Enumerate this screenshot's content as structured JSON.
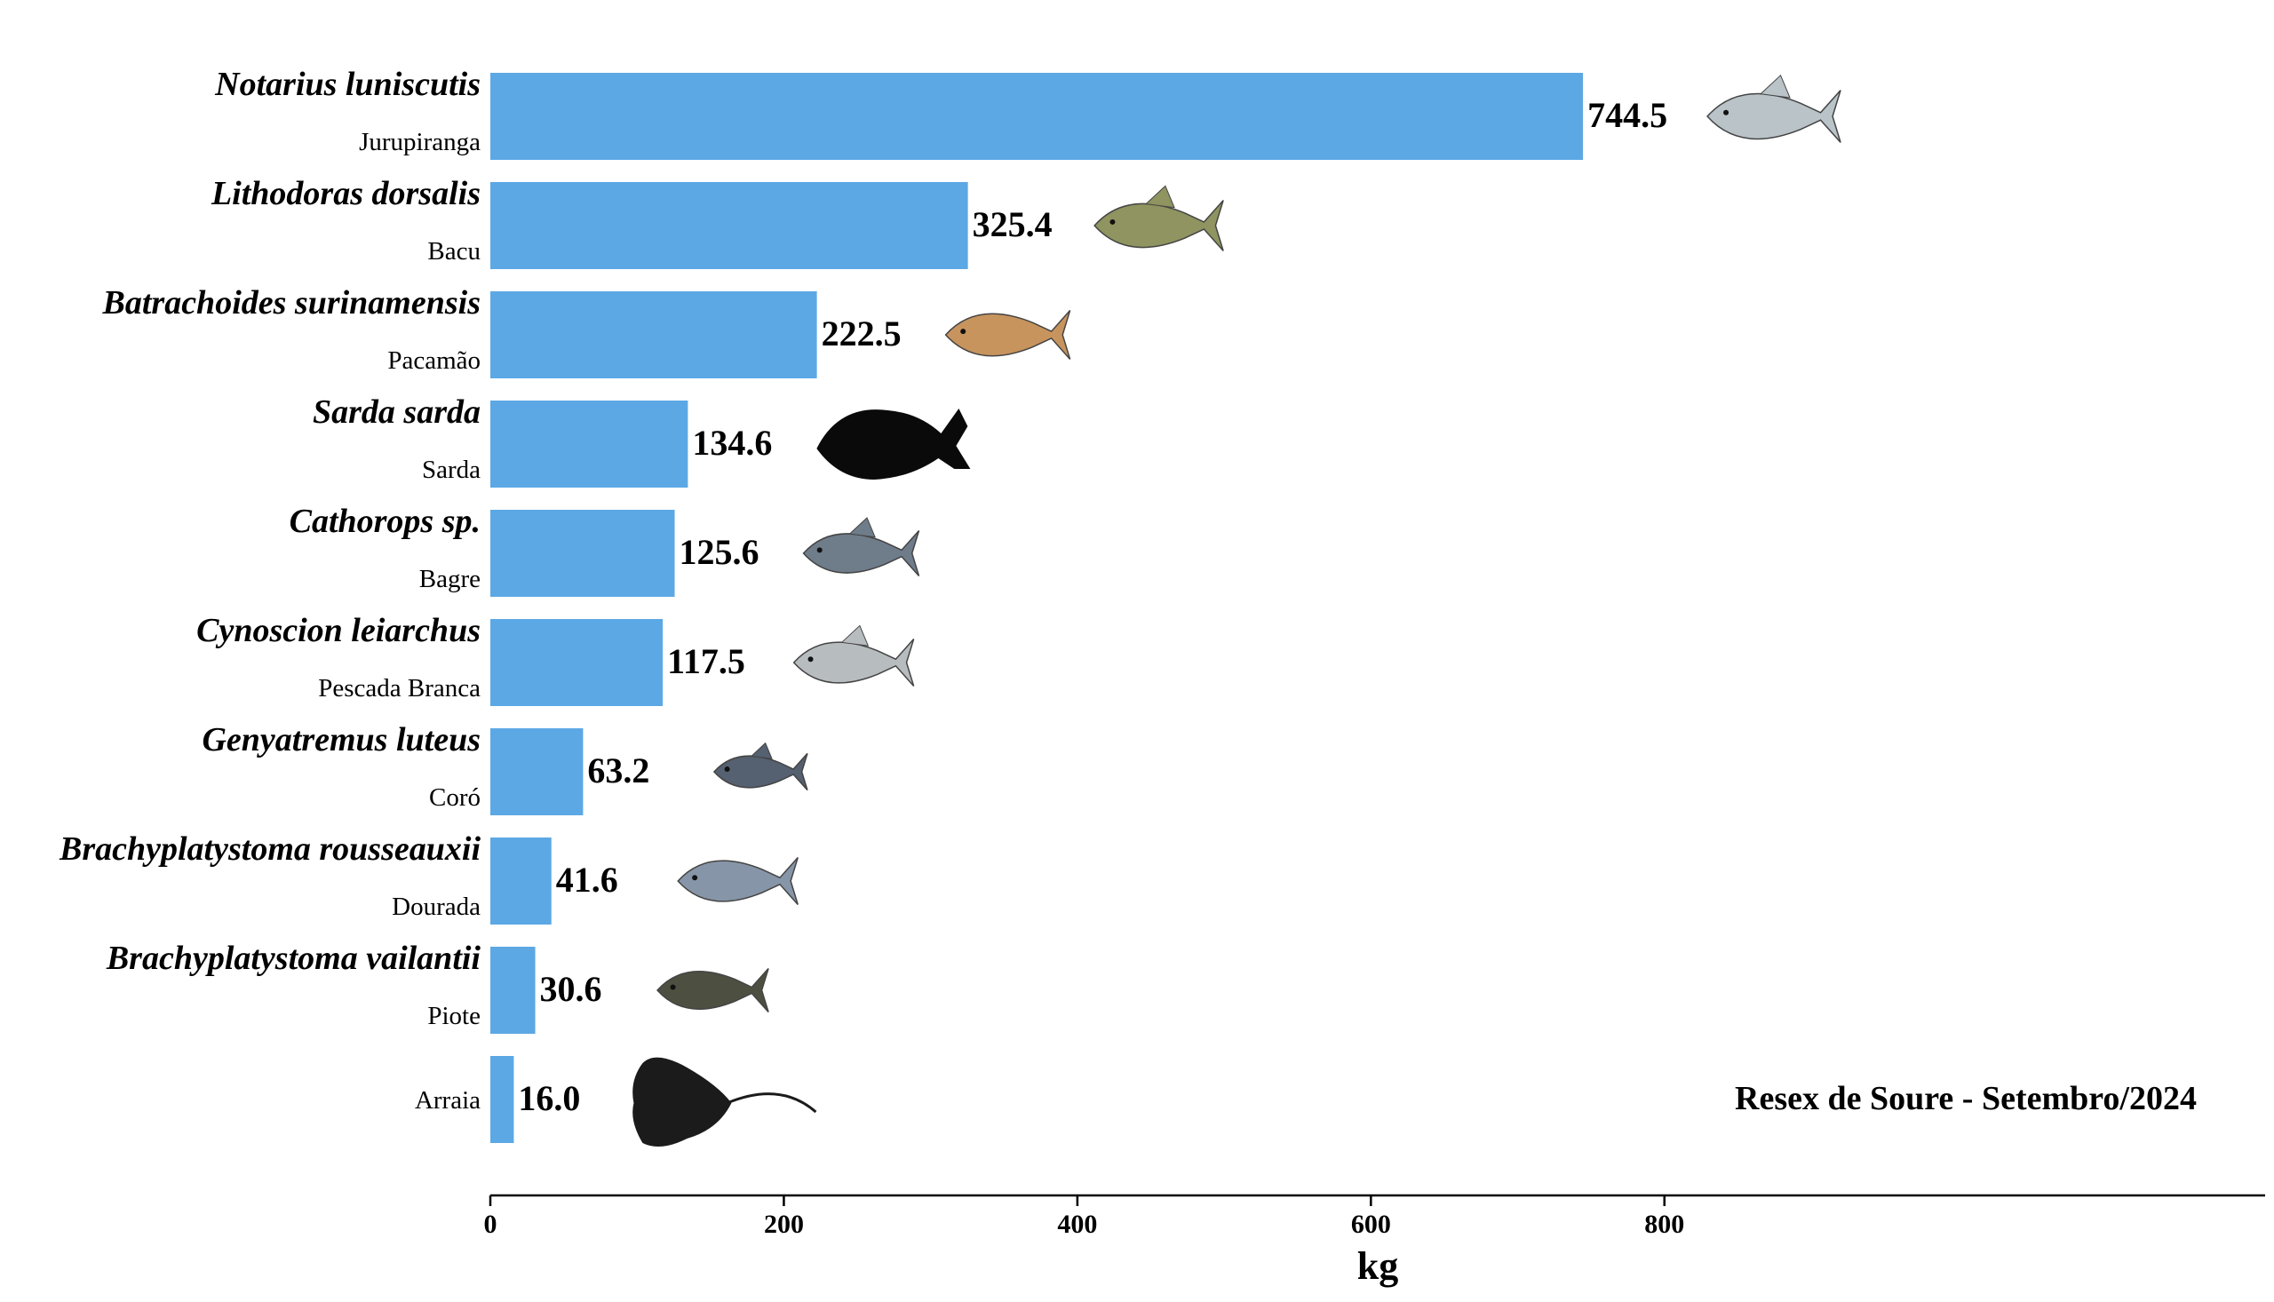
{
  "chart_data": {
    "type": "bar",
    "orientation": "horizontal",
    "categories": [
      {
        "scientific": "Notarius luniscutis",
        "common": "Jurupiranga",
        "icon": "catfish-photo-icon"
      },
      {
        "scientific": "Lithodoras dorsalis",
        "common": "Bacu",
        "icon": "armored-catfish-photo-icon"
      },
      {
        "scientific": "Batrachoides surinamensis",
        "common": "Pacamão",
        "icon": "toadfish-photo-icon"
      },
      {
        "scientific": "Sarda sarda",
        "common": "Sarda",
        "icon": "fish-silhouette-icon"
      },
      {
        "scientific": "Cathorops sp.",
        "common": "Bagre",
        "icon": "bagre-photo-icon"
      },
      {
        "scientific": "Cynoscion leiarchus",
        "common": "Pescada Branca",
        "icon": "weakfish-photo-icon"
      },
      {
        "scientific": "Genyatremus luteus",
        "common": "Coró",
        "icon": "grunt-photo-icon"
      },
      {
        "scientific": "Brachyplatystoma rousseauxii",
        "common": "Dourada",
        "icon": "dourada-photo-icon"
      },
      {
        "scientific": "Brachyplatystoma vailantii",
        "common": "Piote",
        "icon": "piote-photo-icon"
      },
      {
        "scientific": "",
        "common": "Arraia",
        "icon": "stingray-silhouette-icon"
      }
    ],
    "values": [
      744.5,
      325.4,
      222.5,
      134.6,
      125.6,
      117.5,
      63.2,
      41.6,
      30.6,
      16.0
    ],
    "value_labels": [
      "744.5",
      "325.4",
      "222.5",
      "134.6",
      "125.6",
      "117.5",
      "63.2",
      "41.6",
      "30.6",
      "16.0"
    ],
    "xlabel": "kg",
    "xlim": [
      0,
      970
    ],
    "xticks": [
      0,
      200,
      400,
      600,
      800
    ],
    "xtick_labels": [
      "0",
      "200",
      "400",
      "600",
      "800"
    ],
    "annotation": "Resex de Soure - Setembro/2024",
    "annotation_position": "bottom-right",
    "grid": false,
    "legend": "none",
    "colors": {
      "bar": "#5ca8e5",
      "axis": "#000000"
    }
  }
}
